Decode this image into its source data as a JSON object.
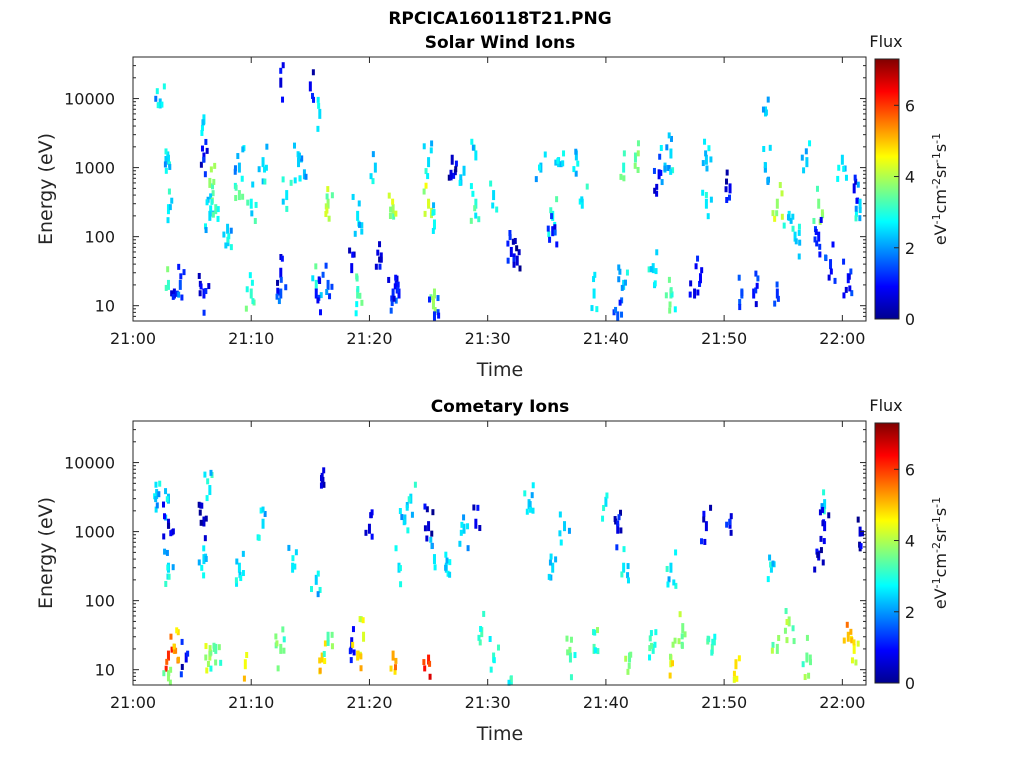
{
  "figure": {
    "filename_title": "RPCICA160118T21.PNG"
  },
  "chart_data": [
    {
      "type": "heatmap",
      "title": "Solar Wind Ions",
      "xlabel": "Time",
      "ylabel": "Energy (eV)",
      "x_ticks": [
        "21:00",
        "21:10",
        "21:20",
        "21:30",
        "21:40",
        "21:50",
        "22:00"
      ],
      "x_range": [
        "21:00",
        "22:02"
      ],
      "y_ticks": [
        "10",
        "100",
        "1000",
        "10000"
      ],
      "y_scale": "log",
      "y_range": [
        6,
        40000
      ],
      "colorbar": {
        "title": "Flux",
        "label": "eV-1cm-2sr-1s-1",
        "label_parts": [
          "eV",
          "-1",
          "cm",
          "-2",
          "sr",
          "-1",
          "s",
          "-1"
        ],
        "ticks": [
          "0",
          "2",
          "4",
          "6"
        ],
        "range": [
          0,
          7.3
        ],
        "colormap": "jet"
      },
      "data": [
        {
          "t": 2.3,
          "e": 8500,
          "v": 2.3
        },
        {
          "t": 12.5,
          "e": 17000,
          "v": 0.6
        },
        {
          "t": 15.0,
          "e": 15000,
          "v": 0.8
        },
        {
          "t": 15.8,
          "e": 6000,
          "v": 2.5
        },
        {
          "t": 6.0,
          "e": 5000,
          "v": 2.6
        },
        {
          "t": 53.5,
          "e": 6500,
          "v": 2.5
        },
        {
          "t": 3.0,
          "e": 1300,
          "v": 2.5
        },
        {
          "t": 3.0,
          "e": 250,
          "v": 2.7
        },
        {
          "t": 3.0,
          "e": 20,
          "v": 3.1
        },
        {
          "t": 3.5,
          "e": 15,
          "v": 0.7
        },
        {
          "t": 4.0,
          "e": 20,
          "v": 1.5
        },
        {
          "t": 6.0,
          "e": 1400,
          "v": 0.8
        },
        {
          "t": 6.5,
          "e": 600,
          "v": 3.8
        },
        {
          "t": 6.5,
          "e": 200,
          "v": 2.5
        },
        {
          "t": 6.0,
          "e": 15,
          "v": 1.0
        },
        {
          "t": 7.0,
          "e": 250,
          "v": 3.3
        },
        {
          "t": 8.0,
          "e": 130,
          "v": 2.4
        },
        {
          "t": 9.0,
          "e": 1000,
          "v": 2.3
        },
        {
          "t": 9.0,
          "e": 400,
          "v": 3.5
        },
        {
          "t": 10.0,
          "e": 300,
          "v": 2.8
        },
        {
          "t": 10.0,
          "e": 15,
          "v": 3.1
        },
        {
          "t": 11.0,
          "e": 1200,
          "v": 2.5
        },
        {
          "t": 12.5,
          "e": 30,
          "v": 0.8
        },
        {
          "t": 12.5,
          "e": 15,
          "v": 1.5
        },
        {
          "t": 13.0,
          "e": 400,
          "v": 2.6
        },
        {
          "t": 14.0,
          "e": 1200,
          "v": 2.4
        },
        {
          "t": 14.5,
          "e": 800,
          "v": 2.3
        },
        {
          "t": 15.5,
          "e": 20,
          "v": 3.0
        },
        {
          "t": 15.5,
          "e": 15,
          "v": 1.0
        },
        {
          "t": 16.5,
          "e": 300,
          "v": 3.8
        },
        {
          "t": 16.5,
          "e": 20,
          "v": 1.5
        },
        {
          "t": 18.5,
          "e": 35,
          "v": 0.8
        },
        {
          "t": 19.0,
          "e": 200,
          "v": 2.6
        },
        {
          "t": 19.0,
          "e": 15,
          "v": 3.3
        },
        {
          "t": 20.5,
          "e": 1000,
          "v": 2.4
        },
        {
          "t": 21.0,
          "e": 50,
          "v": 0.7
        },
        {
          "t": 22.0,
          "e": 250,
          "v": 3.9
        },
        {
          "t": 22.0,
          "e": 15,
          "v": 1.2
        },
        {
          "t": 22.5,
          "e": 15,
          "v": 1.0
        },
        {
          "t": 25.0,
          "e": 1200,
          "v": 2.5
        },
        {
          "t": 25.0,
          "e": 300,
          "v": 4.2
        },
        {
          "t": 25.5,
          "e": 150,
          "v": 2.8
        },
        {
          "t": 25.5,
          "e": 15,
          "v": 3.8
        },
        {
          "t": 25.5,
          "e": 7,
          "v": 1.2
        },
        {
          "t": 27.0,
          "e": 1300,
          "v": 0.5
        },
        {
          "t": 28.0,
          "e": 900,
          "v": 2.4
        },
        {
          "t": 29.0,
          "e": 1500,
          "v": 2.6
        },
        {
          "t": 29.0,
          "e": 300,
          "v": 3.0
        },
        {
          "t": 30.5,
          "e": 400,
          "v": 2.5
        },
        {
          "t": 32.0,
          "e": 60,
          "v": 0.8
        },
        {
          "t": 32.5,
          "e": 45,
          "v": 0.6
        },
        {
          "t": 34.5,
          "e": 1000,
          "v": 2.3
        },
        {
          "t": 35.5,
          "e": 200,
          "v": 2.8
        },
        {
          "t": 35.5,
          "e": 120,
          "v": 1.0
        },
        {
          "t": 36.0,
          "e": 1200,
          "v": 2.5
        },
        {
          "t": 37.5,
          "e": 1500,
          "v": 2.4
        },
        {
          "t": 38.0,
          "e": 300,
          "v": 2.6
        },
        {
          "t": 39.0,
          "e": 15,
          "v": 2.6
        },
        {
          "t": 41.0,
          "e": 7,
          "v": 1.5
        },
        {
          "t": 41.5,
          "e": 20,
          "v": 2.5
        },
        {
          "t": 41.5,
          "e": 1000,
          "v": 3.0
        },
        {
          "t": 42.5,
          "e": 1400,
          "v": 3.3
        },
        {
          "t": 44.0,
          "e": 35,
          "v": 2.5
        },
        {
          "t": 44.5,
          "e": 800,
          "v": 0.8
        },
        {
          "t": 45.0,
          "e": 1000,
          "v": 2.4
        },
        {
          "t": 45.5,
          "e": 1600,
          "v": 2.5
        },
        {
          "t": 45.5,
          "e": 15,
          "v": 3.3
        },
        {
          "t": 47.5,
          "e": 15,
          "v": 0.7
        },
        {
          "t": 48.0,
          "e": 25,
          "v": 0.9
        },
        {
          "t": 48.5,
          "e": 300,
          "v": 2.6
        },
        {
          "t": 48.5,
          "e": 1300,
          "v": 2.4
        },
        {
          "t": 50.5,
          "e": 500,
          "v": 0.8
        },
        {
          "t": 51.5,
          "e": 15,
          "v": 1.5
        },
        {
          "t": 52.5,
          "e": 15,
          "v": 1.0
        },
        {
          "t": 53.5,
          "e": 1000,
          "v": 2.5
        },
        {
          "t": 54.5,
          "e": 300,
          "v": 3.8
        },
        {
          "t": 54.5,
          "e": 15,
          "v": 1.2
        },
        {
          "t": 55.5,
          "e": 200,
          "v": 2.6
        },
        {
          "t": 56.0,
          "e": 100,
          "v": 2.5
        },
        {
          "t": 57.0,
          "e": 1200,
          "v": 2.4
        },
        {
          "t": 58.0,
          "e": 300,
          "v": 3.6
        },
        {
          "t": 58.0,
          "e": 100,
          "v": 1.0
        },
        {
          "t": 59.0,
          "e": 40,
          "v": 1.2
        },
        {
          "t": 60.0,
          "e": 1300,
          "v": 2.5
        },
        {
          "t": 60.5,
          "e": 25,
          "v": 1.0
        },
        {
          "t": 61.0,
          "e": 500,
          "v": 0.8
        },
        {
          "t": 61.5,
          "e": 300,
          "v": 2.5
        }
      ]
    },
    {
      "type": "heatmap",
      "title": "Cometary Ions",
      "xlabel": "Time",
      "ylabel": "Energy (eV)",
      "x_ticks": [
        "21:00",
        "21:10",
        "21:20",
        "21:30",
        "21:40",
        "21:50",
        "22:00"
      ],
      "x_range": [
        "21:00",
        "22:02"
      ],
      "y_ticks": [
        "10",
        "100",
        "1000",
        "10000"
      ],
      "y_scale": "log",
      "y_range": [
        6,
        40000
      ],
      "colorbar": {
        "title": "Flux",
        "label": "eV-1cm-2sr-1s-1",
        "label_parts": [
          "eV",
          "-1",
          "cm",
          "-2",
          "sr",
          "-1",
          "s",
          "-1"
        ],
        "ticks": [
          "0",
          "2",
          "4",
          "6"
        ],
        "range": [
          0,
          7.3
        ],
        "colormap": "jet"
      },
      "data": [
        {
          "t": 2.0,
          "e": 3500,
          "v": 2.4
        },
        {
          "t": 3.0,
          "e": 3000,
          "v": 2.3
        },
        {
          "t": 6.5,
          "e": 4000,
          "v": 2.6
        },
        {
          "t": 16.0,
          "e": 6000,
          "v": 0.7
        },
        {
          "t": 23.5,
          "e": 3000,
          "v": 2.5
        },
        {
          "t": 33.5,
          "e": 2500,
          "v": 2.4
        },
        {
          "t": 40.0,
          "e": 2700,
          "v": 2.5
        },
        {
          "t": 58.5,
          "e": 2500,
          "v": 2.5
        },
        {
          "t": 3.0,
          "e": 1300,
          "v": 0.7
        },
        {
          "t": 3.0,
          "e": 300,
          "v": 2.5
        },
        {
          "t": 3.0,
          "e": 16,
          "v": 6.1
        },
        {
          "t": 3.5,
          "e": 20,
          "v": 5.2
        },
        {
          "t": 3.0,
          "e": 8,
          "v": 3.8
        },
        {
          "t": 4.5,
          "e": 15,
          "v": 0.8
        },
        {
          "t": 6.0,
          "e": 1400,
          "v": 0.6
        },
        {
          "t": 6.0,
          "e": 400,
          "v": 2.5
        },
        {
          "t": 6.5,
          "e": 16,
          "v": 4.0
        },
        {
          "t": 7.0,
          "e": 20,
          "v": 3.3
        },
        {
          "t": 9.0,
          "e": 300,
          "v": 2.6
        },
        {
          "t": 9.5,
          "e": 12,
          "v": 4.5
        },
        {
          "t": 11.0,
          "e": 1300,
          "v": 2.5
        },
        {
          "t": 12.5,
          "e": 20,
          "v": 3.6
        },
        {
          "t": 13.5,
          "e": 300,
          "v": 2.6
        },
        {
          "t": 15.5,
          "e": 200,
          "v": 2.4
        },
        {
          "t": 16.0,
          "e": 15,
          "v": 4.9
        },
        {
          "t": 16.5,
          "e": 30,
          "v": 3.3
        },
        {
          "t": 18.5,
          "e": 25,
          "v": 0.8
        },
        {
          "t": 19.0,
          "e": 16,
          "v": 4.8
        },
        {
          "t": 19.5,
          "e": 30,
          "v": 4.3
        },
        {
          "t": 20.0,
          "e": 1100,
          "v": 0.6
        },
        {
          "t": 22.0,
          "e": 16,
          "v": 5.2
        },
        {
          "t": 22.5,
          "e": 300,
          "v": 2.5
        },
        {
          "t": 23.0,
          "e": 1500,
          "v": 2.4
        },
        {
          "t": 25.0,
          "e": 14,
          "v": 6.2
        },
        {
          "t": 25.0,
          "e": 1200,
          "v": 0.6
        },
        {
          "t": 25.5,
          "e": 400,
          "v": 2.6
        },
        {
          "t": 26.5,
          "e": 300,
          "v": 2.5
        },
        {
          "t": 28.0,
          "e": 1100,
          "v": 2.4
        },
        {
          "t": 29.0,
          "e": 1300,
          "v": 0.8
        },
        {
          "t": 29.5,
          "e": 35,
          "v": 3.3
        },
        {
          "t": 30.5,
          "e": 15,
          "v": 3.1
        },
        {
          "t": 32.0,
          "e": 7,
          "v": 3.0
        },
        {
          "t": 35.5,
          "e": 300,
          "v": 2.5
        },
        {
          "t": 36.5,
          "e": 1200,
          "v": 2.4
        },
        {
          "t": 37.0,
          "e": 15,
          "v": 3.2
        },
        {
          "t": 39.0,
          "e": 20,
          "v": 3.3
        },
        {
          "t": 41.0,
          "e": 1100,
          "v": 0.7
        },
        {
          "t": 41.5,
          "e": 300,
          "v": 2.6
        },
        {
          "t": 42.0,
          "e": 15,
          "v": 3.4
        },
        {
          "t": 44.0,
          "e": 20,
          "v": 3.0
        },
        {
          "t": 45.5,
          "e": 300,
          "v": 2.5
        },
        {
          "t": 45.5,
          "e": 14,
          "v": 4.3
        },
        {
          "t": 46.5,
          "e": 40,
          "v": 3.6
        },
        {
          "t": 48.5,
          "e": 1200,
          "v": 0.7
        },
        {
          "t": 49.0,
          "e": 20,
          "v": 3.3
        },
        {
          "t": 50.5,
          "e": 1300,
          "v": 0.8
        },
        {
          "t": 51.0,
          "e": 12,
          "v": 4.8
        },
        {
          "t": 54.0,
          "e": 300,
          "v": 2.5
        },
        {
          "t": 54.5,
          "e": 20,
          "v": 3.6
        },
        {
          "t": 55.5,
          "e": 50,
          "v": 3.8
        },
        {
          "t": 57.0,
          "e": 15,
          "v": 3.5
        },
        {
          "t": 58.0,
          "e": 450,
          "v": 0.7
        },
        {
          "t": 58.5,
          "e": 1200,
          "v": 0.8
        },
        {
          "t": 60.5,
          "e": 30,
          "v": 5.0
        },
        {
          "t": 61.0,
          "e": 20,
          "v": 4.5
        },
        {
          "t": 61.5,
          "e": 1000,
          "v": 0.6
        }
      ]
    }
  ]
}
